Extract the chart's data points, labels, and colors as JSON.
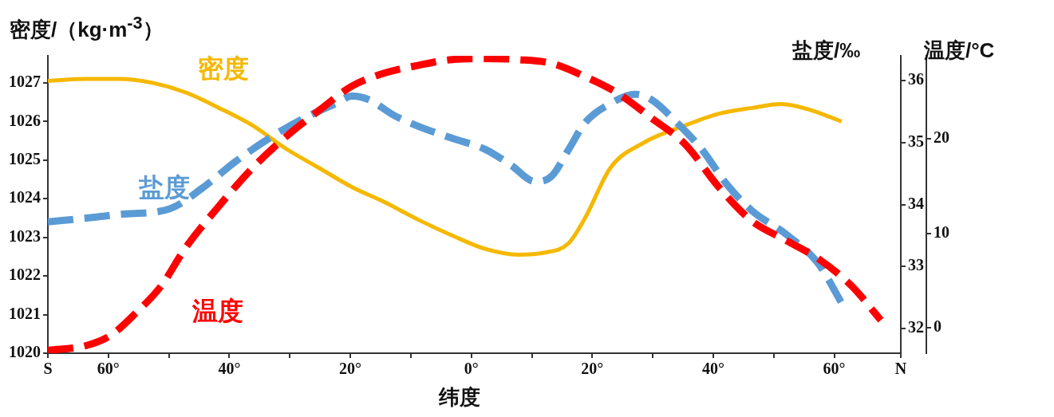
{
  "chart_data": {
    "type": "line",
    "xlabel": "纬度",
    "ylabel": "密度/（kg·m$^{-3}$）",
    "y2label": "盐度/‰",
    "y3label": "温度/°C",
    "grid": false,
    "legend": false,
    "marker": "none",
    "xlim": [
      -70,
      71
    ],
    "xticks": [
      {
        "value": -70,
        "label": "S"
      },
      {
        "value": -60,
        "label": "60°"
      },
      {
        "value": -50,
        "label": null
      },
      {
        "value": -40,
        "label": "40°"
      },
      {
        "value": -30,
        "label": null
      },
      {
        "value": -20,
        "label": "20°"
      },
      {
        "value": -10,
        "label": null
      },
      {
        "value": 0,
        "label": "0°"
      },
      {
        "value": 10,
        "label": null
      },
      {
        "value": 20,
        "label": "20°"
      },
      {
        "value": 30,
        "label": null
      },
      {
        "value": 40,
        "label": "40°"
      },
      {
        "value": 50,
        "label": null
      },
      {
        "value": 60,
        "label": "60°"
      },
      {
        "value": 71,
        "label": "N"
      }
    ],
    "ylim": [
      1020,
      1027.7
    ],
    "yticks": [
      1020,
      1021,
      1022,
      1023,
      1024,
      1025,
      1026,
      1027
    ],
    "y2lim": [
      31.6,
      36.4
    ],
    "y2ticks": [
      32,
      33,
      34,
      35,
      36
    ],
    "y3lim": [
      -2.7,
      28.8
    ],
    "y3ticks": [
      0,
      10,
      20
    ],
    "series": [
      {
        "name": "密度",
        "color": "#f5b800",
        "line_style": "solid",
        "x": [
          -70,
          -63.7,
          -58.2,
          -52.7,
          -47.2,
          -41.7,
          -36.2,
          -30.7,
          -25.2,
          -19.7,
          -14.2,
          -8.7,
          -3.2,
          2.3,
          7.8,
          12,
          16.1,
          18.8,
          23,
          28.5,
          35.4,
          40.9,
          46.4,
          51.2,
          56,
          61.2
        ],
        "values": [
          1027.05,
          1027.1,
          1027.1,
          1027,
          1026.75,
          1026.35,
          1025.9,
          1025.3,
          1024.8,
          1024.3,
          1023.9,
          1023.45,
          1023.05,
          1022.7,
          1022.55,
          1022.6,
          1022.85,
          1023.5,
          1024.8,
          1025.45,
          1025.9,
          1026.2,
          1026.35,
          1026.45,
          1026.3,
          1026
        ]
      },
      {
        "name": "盐度",
        "color": "#5b9bd5",
        "line_style": "dashed",
        "axis": "y2",
        "x": [
          -70,
          -63.7,
          -58.2,
          -49.9,
          -44.4,
          -38.9,
          -33.4,
          -27.9,
          -22.4,
          -19.7,
          -16.9,
          -12.8,
          -8.7,
          -3.2,
          2.3,
          6.5,
          10.6,
          13.3,
          16.1,
          18.8,
          23,
          27.1,
          29.8,
          34,
          38.1,
          42.2,
          46.4,
          51.9,
          57.4,
          61.5
        ],
        "values": [
          33.72,
          33.78,
          33.84,
          33.93,
          34.27,
          34.7,
          35.07,
          35.38,
          35.63,
          35.75,
          35.69,
          35.44,
          35.26,
          35.07,
          34.89,
          34.64,
          34.37,
          34.46,
          34.89,
          35.32,
          35.63,
          35.78,
          35.69,
          35.32,
          34.89,
          34.33,
          33.9,
          33.53,
          33.04,
          32.36
        ]
      },
      {
        "name": "温度",
        "color": "#ff0000",
        "line_style": "dashed",
        "axis": "y3",
        "x": [
          -70,
          -63.7,
          -59.6,
          -55.4,
          -51.3,
          -47.2,
          -41.7,
          -36.2,
          -30.7,
          -25.2,
          -19.7,
          -14.2,
          -8.7,
          -3.2,
          2.3,
          7.8,
          13.3,
          18.8,
          24.3,
          29.8,
          35.4,
          40.9,
          46.4,
          51.9,
          57.4,
          62.9,
          67.7
        ],
        "values": [
          -2.4,
          -1.9,
          -0.8,
          1.6,
          4.4,
          8.5,
          12.9,
          16.9,
          20.2,
          23,
          25.6,
          27,
          27.8,
          28.4,
          28.5,
          28.4,
          28,
          26.6,
          24.8,
          22.2,
          19.4,
          14.9,
          11.3,
          9.3,
          7.3,
          4.4,
          0.8
        ]
      }
    ]
  }
}
